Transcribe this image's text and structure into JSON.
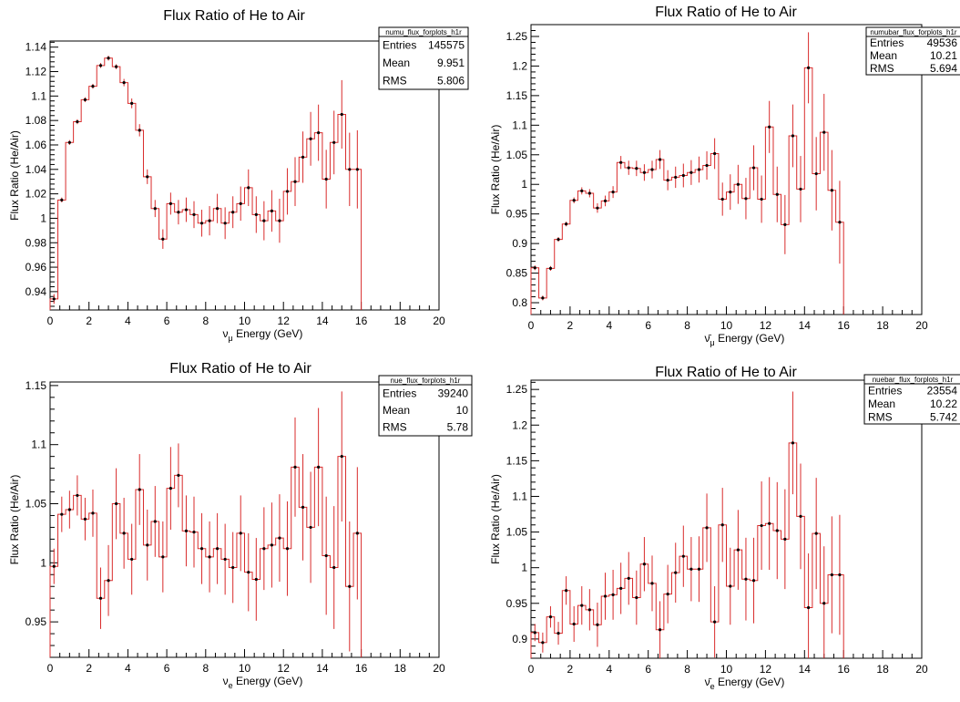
{
  "colors": {
    "histogram": "#d92b2b",
    "points": "#000000",
    "frame": "#000000"
  },
  "chart_data": [
    {
      "type": "histogram",
      "title": "Flux Ratio of He to Air",
      "xlabel": "ν_μ Energy (GeV)",
      "xlabel_main": "ν",
      "xlabel_sub": "μ",
      "xlabel_rest": " Energy (GeV)",
      "ylabel": "Flux Ratio (He/Air)",
      "xlim": [
        0,
        20
      ],
      "ylim": [
        0.925,
        1.145
      ],
      "x_ticks": [
        0,
        2,
        4,
        6,
        8,
        10,
        12,
        14,
        16,
        18,
        20
      ],
      "x_tick_labels": [
        "0",
        "2",
        "4",
        "6",
        "8",
        "10",
        "12",
        "14",
        "16",
        "18",
        "20"
      ],
      "y_ticks": [
        0.94,
        0.96,
        0.98,
        1.0,
        1.02,
        1.04,
        1.06,
        1.08,
        1.1,
        1.12,
        1.14
      ],
      "y_tick_labels": [
        "0.94",
        "0.96",
        "0.98",
        "1",
        "1.02",
        "1.04",
        "1.06",
        "1.08",
        "1.1",
        "1.12",
        "1.14"
      ],
      "bin_width": 0.4,
      "values": [
        0.934,
        1.015,
        1.062,
        1.079,
        1.097,
        1.108,
        1.125,
        1.131,
        1.124,
        1.111,
        1.094,
        1.072,
        1.034,
        1.008,
        0.983,
        1.012,
        1.005,
        1.007,
        1.003,
        0.996,
        0.998,
        1.008,
        0.996,
        1.005,
        1.012,
        1.025,
        1.003,
        0.998,
        1.006,
        0.998,
        1.022,
        1.03,
        1.05,
        1.065,
        1.07,
        1.032,
        1.062,
        1.085,
        1.04,
        1.04
      ],
      "errors": [
        0.004,
        0.002,
        0.002,
        0.002,
        0.002,
        0.002,
        0.002,
        0.002,
        0.002,
        0.003,
        0.004,
        0.005,
        0.006,
        0.007,
        0.008,
        0.009,
        0.01,
        0.01,
        0.011,
        0.011,
        0.012,
        0.012,
        0.013,
        0.013,
        0.014,
        0.015,
        0.015,
        0.016,
        0.017,
        0.018,
        0.019,
        0.02,
        0.021,
        0.022,
        0.023,
        0.024,
        0.026,
        0.028,
        0.03,
        0.032
      ],
      "stats": {
        "name": "numu_flux_forplots_h1r",
        "entries": "145575",
        "mean": "9.951",
        "rms": "5.806"
      }
    },
    {
      "type": "histogram",
      "title": "Flux Ratio of He to Air",
      "xlabel": "ν̄_μ Energy (GeV)",
      "xlabel_main": "ν̄",
      "xlabel_sub": "μ",
      "xlabel_rest": " Energy (GeV)",
      "ylabel": "Flux Ratio (He/Air)",
      "xlim": [
        0,
        20
      ],
      "ylim": [
        0.78,
        1.27
      ],
      "x_ticks": [
        0,
        2,
        4,
        6,
        8,
        10,
        12,
        14,
        16,
        18,
        20
      ],
      "x_tick_labels": [
        "0",
        "2",
        "4",
        "6",
        "8",
        "10",
        "12",
        "14",
        "16",
        "18",
        "20"
      ],
      "y_ticks": [
        0.8,
        0.85,
        0.9,
        0.95,
        1.0,
        1.05,
        1.1,
        1.15,
        1.2,
        1.25
      ],
      "y_tick_labels": [
        "0.8",
        "0.85",
        "0.9",
        "0.95",
        "1",
        "1.05",
        "1.1",
        "1.15",
        "1.2",
        "1.25"
      ],
      "bin_width": 0.4,
      "values": [
        0.859,
        0.808,
        0.858,
        0.907,
        0.933,
        0.973,
        0.989,
        0.985,
        0.96,
        0.972,
        0.987,
        1.037,
        1.028,
        1.027,
        1.02,
        1.025,
        1.042,
        1.007,
        1.012,
        1.015,
        1.02,
        1.025,
        1.032,
        1.052,
        0.975,
        0.987,
        1.0,
        0.976,
        1.028,
        0.975,
        1.097,
        0.983,
        0.932,
        1.082,
        0.992,
        1.197,
        1.018,
        1.088,
        0.99,
        0.936
      ],
      "errors": [
        0.004,
        0.004,
        0.004,
        0.004,
        0.004,
        0.005,
        0.006,
        0.007,
        0.008,
        0.009,
        0.01,
        0.011,
        0.012,
        0.013,
        0.014,
        0.015,
        0.016,
        0.017,
        0.018,
        0.02,
        0.021,
        0.022,
        0.024,
        0.026,
        0.028,
        0.03,
        0.033,
        0.035,
        0.038,
        0.04,
        0.044,
        0.047,
        0.05,
        0.053,
        0.056,
        0.06,
        0.062,
        0.065,
        0.068,
        0.07
      ],
      "stats": {
        "name": "numubar_flux_forplots_h1r",
        "entries": "49536",
        "mean": "10.21",
        "rms": "5.694"
      }
    },
    {
      "type": "histogram",
      "title": "Flux Ratio of He to Air",
      "xlabel": "ν_e Energy (GeV)",
      "xlabel_main": "ν",
      "xlabel_sub": "e",
      "xlabel_rest": " Energy (GeV)",
      "ylabel": "Flux Ratio (He/Air)",
      "xlim": [
        0,
        20
      ],
      "ylim": [
        0.92,
        1.153
      ],
      "x_ticks": [
        0,
        2,
        4,
        6,
        8,
        10,
        12,
        14,
        16,
        18,
        20
      ],
      "x_tick_labels": [
        "0",
        "2",
        "4",
        "6",
        "8",
        "10",
        "12",
        "14",
        "16",
        "18",
        "20"
      ],
      "y_ticks": [
        0.95,
        1.0,
        1.05,
        1.1,
        1.15
      ],
      "y_tick_labels": [
        "0.95",
        "1",
        "1.05",
        "1.1",
        "1.15"
      ],
      "bin_width": 0.4,
      "values": [
        0.997,
        1.041,
        1.045,
        1.057,
        1.037,
        1.042,
        0.97,
        0.985,
        1.05,
        1.025,
        1.003,
        1.062,
        1.015,
        1.035,
        1.005,
        1.063,
        1.074,
        1.027,
        1.026,
        1.012,
        1.005,
        1.012,
        1.003,
        0.996,
        1.025,
        0.992,
        0.986,
        1.012,
        1.015,
        1.021,
        1.012,
        1.081,
        1.047,
        1.03,
        1.081,
        1.006,
        0.996,
        1.09,
        0.98,
        1.025
      ],
      "errors": [
        0.015,
        0.015,
        0.016,
        0.017,
        0.018,
        0.02,
        0.026,
        0.03,
        0.03,
        0.03,
        0.03,
        0.03,
        0.03,
        0.03,
        0.03,
        0.035,
        0.027,
        0.03,
        0.03,
        0.03,
        0.03,
        0.03,
        0.03,
        0.03,
        0.032,
        0.033,
        0.035,
        0.035,
        0.036,
        0.037,
        0.04,
        0.042,
        0.045,
        0.047,
        0.05,
        0.05,
        0.052,
        0.055,
        0.055,
        0.056
      ],
      "stats": {
        "name": "nue_flux_forplots_h1r",
        "entries": "39240",
        "mean": "10",
        "rms": "5.78"
      }
    },
    {
      "type": "histogram",
      "title": "Flux Ratio of He to Air",
      "xlabel": "ν̄_e Energy (GeV)",
      "xlabel_main": "ν̄",
      "xlabel_sub": "e",
      "xlabel_rest": " Energy (GeV)",
      "ylabel": "Flux Ratio (He/Air)",
      "xlim": [
        0,
        20
      ],
      "ylim": [
        0.873,
        1.263
      ],
      "x_ticks": [
        0,
        2,
        4,
        6,
        8,
        10,
        12,
        14,
        16,
        18,
        20
      ],
      "x_tick_labels": [
        "0",
        "2",
        "4",
        "6",
        "8",
        "10",
        "12",
        "14",
        "16",
        "18",
        "20"
      ],
      "y_ticks": [
        0.9,
        0.95,
        1.0,
        1.05,
        1.1,
        1.15,
        1.2,
        1.25
      ],
      "y_tick_labels": [
        "0.9",
        "0.95",
        "1",
        "1.05",
        "1.1",
        "1.15",
        "1.2",
        "1.25"
      ],
      "bin_width": 0.4,
      "values": [
        0.909,
        0.895,
        0.931,
        0.908,
        0.968,
        0.921,
        0.947,
        0.941,
        0.92,
        0.96,
        0.962,
        0.971,
        0.985,
        0.958,
        1.005,
        0.978,
        0.913,
        0.963,
        0.993,
        1.016,
        0.998,
        0.998,
        1.056,
        0.924,
        1.06,
        0.974,
        1.025,
        0.984,
        0.982,
        1.059,
        1.062,
        1.052,
        1.04,
        1.175,
        1.072,
        0.944,
        1.048,
        0.95,
        0.99,
        0.99
      ],
      "errors": [
        0.012,
        0.014,
        0.015,
        0.016,
        0.02,
        0.025,
        0.027,
        0.029,
        0.031,
        0.033,
        0.035,
        0.036,
        0.037,
        0.038,
        0.038,
        0.039,
        0.04,
        0.041,
        0.042,
        0.043,
        0.045,
        0.046,
        0.048,
        0.05,
        0.052,
        0.054,
        0.056,
        0.058,
        0.06,
        0.062,
        0.065,
        0.068,
        0.07,
        0.072,
        0.074,
        0.076,
        0.078,
        0.08,
        0.082,
        0.084
      ],
      "stats": {
        "name": "nuebar_flux_forplots_h1r",
        "entries": "23554",
        "mean": "10.22",
        "rms": "5.742"
      }
    }
  ],
  "stats_labels": {
    "entries": "Entries",
    "mean": "Mean",
    "rms": "RMS"
  }
}
